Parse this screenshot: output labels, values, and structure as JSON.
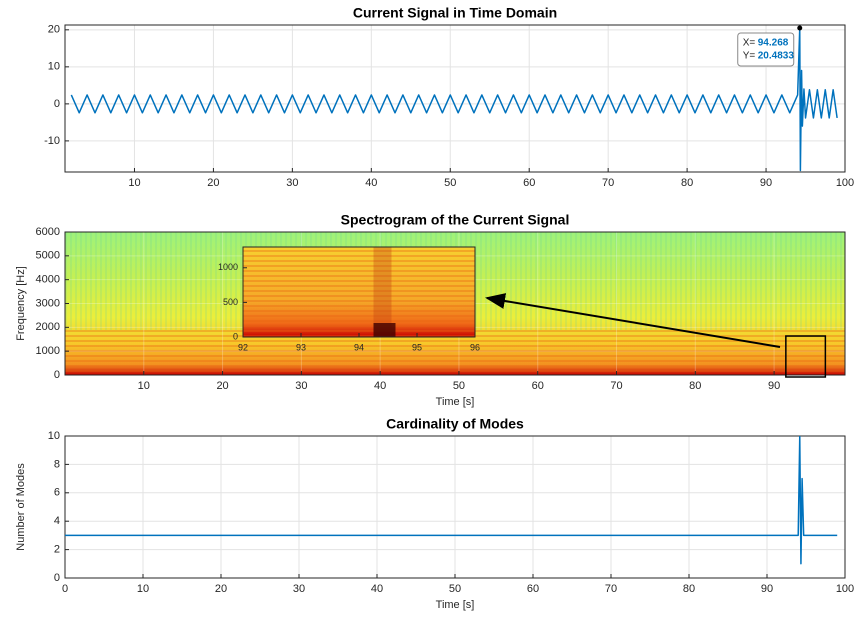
{
  "chart_data": [
    {
      "type": "line",
      "title": "Current Signal in Time Domain",
      "x": [
        2,
        3,
        4,
        5,
        6,
        7,
        8,
        9,
        10,
        11,
        12,
        13,
        14,
        15,
        16,
        17,
        18,
        19,
        20,
        21,
        22,
        23,
        24,
        25,
        26,
        27,
        28,
        29,
        30,
        31,
        32,
        33,
        34,
        35,
        36,
        37,
        38,
        39,
        40,
        41,
        42,
        43,
        44,
        45,
        46,
        47,
        48,
        49,
        50,
        51,
        52,
        53,
        54,
        55,
        56,
        57,
        58,
        59,
        60,
        61,
        62,
        63,
        64,
        65,
        66,
        67,
        68,
        69,
        70,
        71,
        72,
        73,
        74,
        75,
        76,
        77,
        78,
        79,
        80,
        81,
        82,
        83,
        84,
        85,
        86,
        87,
        88,
        89,
        90,
        91,
        92,
        93,
        94,
        94.268,
        94.35,
        94.5,
        94.6,
        94.8,
        95,
        95.5,
        96,
        96.5,
        97,
        97.5,
        98,
        98.5,
        99
      ],
      "series": [
        {
          "color": "#0072bd",
          "values": [
            2.4,
            -2.4,
            2.4,
            -2.4,
            2.4,
            -2.4,
            2.4,
            -2.4,
            2.4,
            -2.4,
            2.4,
            -2.4,
            2.4,
            -2.4,
            2.4,
            -2.4,
            2.4,
            -2.4,
            2.4,
            -2.4,
            2.4,
            -2.4,
            2.4,
            -2.4,
            2.4,
            -2.4,
            2.4,
            -2.4,
            2.4,
            -2.4,
            2.4,
            -2.4,
            2.4,
            -2.4,
            2.4,
            -2.4,
            2.4,
            -2.4,
            2.4,
            -2.4,
            2.4,
            -2.4,
            2.4,
            -2.4,
            2.4,
            -2.4,
            2.4,
            -2.4,
            2.4,
            -2.4,
            2.4,
            -2.4,
            2.4,
            -2.4,
            2.4,
            -2.4,
            2.4,
            -2.4,
            2.4,
            -2.4,
            2.4,
            -2.4,
            2.4,
            -2.4,
            2.4,
            -2.4,
            2.4,
            -2.4,
            2.4,
            -2.4,
            2.4,
            -2.4,
            2.4,
            -2.4,
            2.4,
            -2.4,
            2.4,
            -2.4,
            2.4,
            -2.4,
            2.4,
            -2.4,
            2.4,
            -2.4,
            2.4,
            -2.4,
            2.4,
            -2.4,
            2.4,
            -2.4,
            2.4,
            -2.4,
            2.4,
            20.4833,
            -18,
            9,
            -6,
            4,
            -3.8,
            3.8,
            -3.8,
            3.8,
            -3.8,
            3.8,
            -3.8,
            3.8,
            -3.8
          ]
        }
      ],
      "xlim": [
        1.2,
        100
      ],
      "ylim": [
        -18.4,
        21.3
      ],
      "xticks": [
        10,
        20,
        30,
        40,
        50,
        60,
        70,
        80,
        90,
        100
      ],
      "yticks": [
        -10,
        0,
        10,
        20
      ],
      "grid": true,
      "datatip": {
        "x_label": "X=",
        "x": 94.268,
        "y_label": "Y=",
        "y": 20.4833
      }
    },
    {
      "type": "spectrogram",
      "title": "Spectrogram of the Current Signal",
      "xlabel": "Time [s]",
      "ylabel": "Frequency [Hz]",
      "xlim": [
        0,
        99
      ],
      "ylim": [
        0,
        6000
      ],
      "xticks": [
        10,
        20,
        30,
        40,
        50,
        60,
        70,
        80,
        90
      ],
      "yticks": [
        0,
        1000,
        2000,
        3000,
        4000,
        5000,
        6000
      ],
      "grid": true,
      "inset": {
        "xlim": [
          92,
          96
        ],
        "ylim": [
          0,
          1300
        ],
        "xticks": [
          92,
          93,
          94,
          95,
          96
        ],
        "yticks": [
          0,
          500,
          1000
        ]
      }
    },
    {
      "type": "line",
      "title": "Cardinality of Modes",
      "xlabel": "Time [s]",
      "ylabel": "Number of Modes",
      "x": [
        0,
        94,
        94.2,
        94.35,
        94.5,
        94.7,
        99
      ],
      "series": [
        {
          "color": "#0072bd",
          "values": [
            3,
            3,
            10,
            1,
            7,
            3,
            3
          ]
        }
      ],
      "xlim": [
        0,
        100
      ],
      "ylim": [
        0,
        10
      ],
      "xticks": [
        0,
        10,
        20,
        30,
        40,
        50,
        60,
        70,
        80,
        90,
        100
      ],
      "yticks": [
        0,
        2,
        4,
        6,
        8,
        10
      ],
      "grid": true
    }
  ]
}
